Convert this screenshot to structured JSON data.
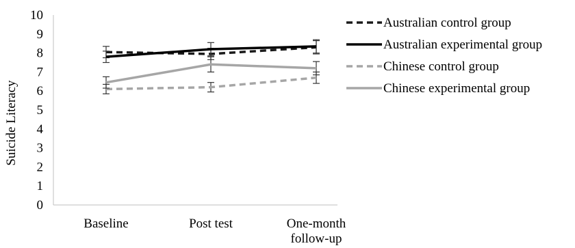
{
  "chart_data": {
    "type": "line",
    "title": "",
    "xlabel": "",
    "ylabel": "Suicide Literacy",
    "ylim": [
      0,
      10
    ],
    "yticks": [
      0,
      1,
      2,
      3,
      4,
      5,
      6,
      7,
      8,
      9,
      10
    ],
    "categories": [
      [
        "Baseline"
      ],
      [
        "Post test"
      ],
      [
        "One-month",
        "follow-up"
      ]
    ],
    "grid": false,
    "legend_position": "top-right",
    "series": [
      {
        "name": "Australian control group",
        "values": [
          8.05,
          7.95,
          8.3
        ],
        "errors": [
          0.3,
          0.3,
          0.35
        ],
        "color": "#1a1a1a",
        "dash": "dashed"
      },
      {
        "name": "Australian experimental group",
        "values": [
          7.8,
          8.2,
          8.35
        ],
        "errors": [
          0.3,
          0.35,
          0.35
        ],
        "color": "#000000",
        "dash": "solid"
      },
      {
        "name": "Chinese control group",
        "values": [
          6.1,
          6.2,
          6.7
        ],
        "errors": [
          0.25,
          0.25,
          0.3
        ],
        "color": "#a6a6a6",
        "dash": "dashed"
      },
      {
        "name": "Chinese experimental group",
        "values": [
          6.45,
          7.4,
          7.2
        ],
        "errors": [
          0.3,
          0.4,
          0.35
        ],
        "color": "#a6a6a6",
        "dash": "solid"
      }
    ]
  }
}
